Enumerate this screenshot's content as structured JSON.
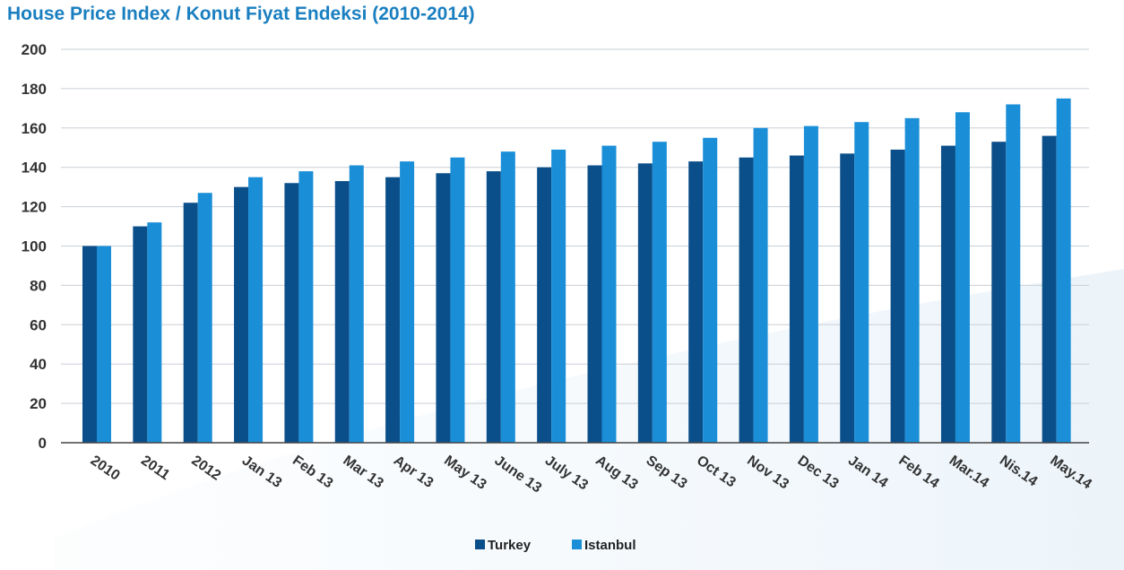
{
  "chart_data": {
    "type": "bar",
    "title": "House Price Index / Konut Fiyat Endeksi (2010-2014)",
    "xlabel": "",
    "ylabel": "",
    "ylim": [
      0,
      200
    ],
    "yticks": [
      0,
      20,
      40,
      60,
      80,
      100,
      120,
      140,
      160,
      180,
      200
    ],
    "grid": true,
    "legend_position": "bottom-center",
    "categories": [
      "2010",
      "2011",
      "2012",
      "Jan 13",
      "Feb 13",
      "Mar 13",
      "Apr 13",
      "May 13",
      "June 13",
      "July 13",
      "Aug 13",
      "Sep 13",
      "Oct 13",
      "Nov 13",
      "Dec 13",
      "Jan 14",
      "Feb 14",
      "Mar.14",
      "Nis.14",
      "May.14"
    ],
    "series": [
      {
        "name": "Turkey",
        "color": "#0b4f8a",
        "values": [
          100,
          110,
          122,
          130,
          132,
          133,
          135,
          137,
          138,
          140,
          141,
          142,
          143,
          145,
          146,
          147,
          149,
          151,
          153,
          156
        ]
      },
      {
        "name": "Istanbul",
        "color": "#1a8fd8",
        "values": [
          100,
          112,
          127,
          135,
          138,
          141,
          143,
          145,
          148,
          149,
          151,
          153,
          155,
          160,
          161,
          163,
          165,
          168,
          172,
          175
        ]
      }
    ]
  }
}
